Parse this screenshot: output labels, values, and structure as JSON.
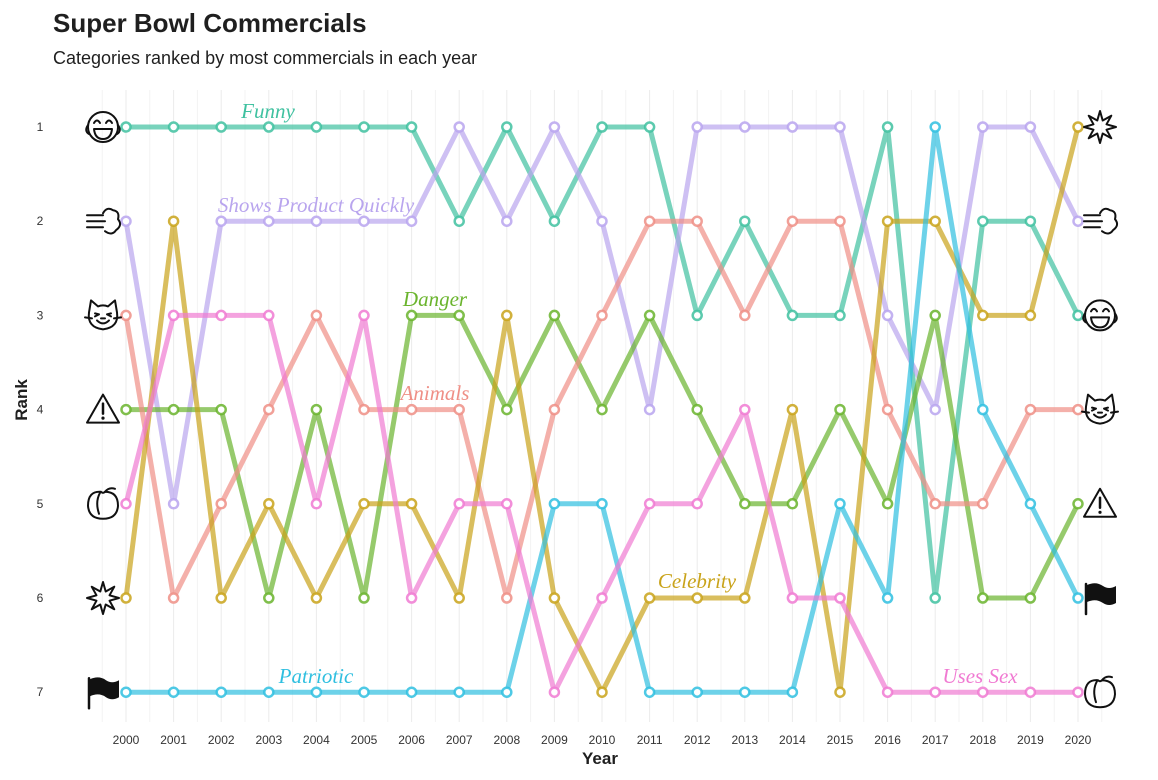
{
  "chart_data": {
    "type": "line",
    "title": "Super Bowl Commercials",
    "subtitle": "Categories ranked by most commercials in each year",
    "xlabel": "Year",
    "ylabel": "Rank",
    "x": [
      "2000",
      "2001",
      "2002",
      "2003",
      "2004",
      "2005",
      "2006",
      "2007",
      "2008",
      "2009",
      "2010",
      "2011",
      "2012",
      "2013",
      "2014",
      "2015",
      "2016",
      "2017",
      "2018",
      "2019",
      "2020"
    ],
    "y_ticks": [
      "1",
      "2",
      "3",
      "4",
      "5",
      "6",
      "7"
    ],
    "ylim": [
      1,
      7
    ],
    "y_reversed": true,
    "grid": "vertical",
    "series": [
      {
        "name": "Funny",
        "color": "#3fc1a0",
        "icon": "laughing-face-icon",
        "values": [
          1,
          1,
          1,
          1,
          1,
          1,
          1,
          2,
          1,
          2,
          1,
          1,
          3,
          2,
          3,
          3,
          1,
          6,
          2,
          2,
          3
        ]
      },
      {
        "name": "Shows Product Quickly",
        "color": "#b9a5ee",
        "icon": "wind-puff-icon",
        "values": [
          2,
          5,
          2,
          2,
          2,
          2,
          2,
          1,
          2,
          1,
          2,
          4,
          1,
          1,
          1,
          1,
          3,
          4,
          1,
          1,
          2
        ]
      },
      {
        "name": "Danger",
        "color": "#6ab42d",
        "icon": "warning-icon",
        "values": [
          4,
          4,
          4,
          6,
          4,
          6,
          3,
          3,
          4,
          3,
          4,
          3,
          4,
          5,
          5,
          4,
          5,
          3,
          6,
          6,
          5
        ]
      },
      {
        "name": "Animals",
        "color": "#ef8f86",
        "icon": "cat-face-icon",
        "values": [
          3,
          6,
          5,
          4,
          3,
          4,
          4,
          4,
          6,
          4,
          3,
          2,
          2,
          3,
          2,
          2,
          4,
          5,
          5,
          4,
          4
        ]
      },
      {
        "name": "Celebrity",
        "color": "#c9a31a",
        "icon": "star-burst-icon",
        "values": [
          6,
          2,
          6,
          5,
          6,
          5,
          5,
          6,
          3,
          6,
          7,
          6,
          6,
          6,
          4,
          7,
          2,
          2,
          3,
          3,
          1
        ]
      },
      {
        "name": "Patriotic",
        "color": "#2fbfe0",
        "icon": "flag-icon",
        "values": [
          7,
          7,
          7,
          7,
          7,
          7,
          7,
          7,
          7,
          5,
          5,
          7,
          7,
          7,
          7,
          5,
          6,
          1,
          4,
          5,
          6
        ]
      },
      {
        "name": "Uses Sex",
        "color": "#f07ad2",
        "icon": "peach-icon",
        "values": [
          5,
          3,
          3,
          3,
          5,
          3,
          6,
          5,
          5,
          7,
          6,
          5,
          5,
          4,
          6,
          6,
          7,
          7,
          7,
          7,
          7
        ]
      }
    ]
  }
}
